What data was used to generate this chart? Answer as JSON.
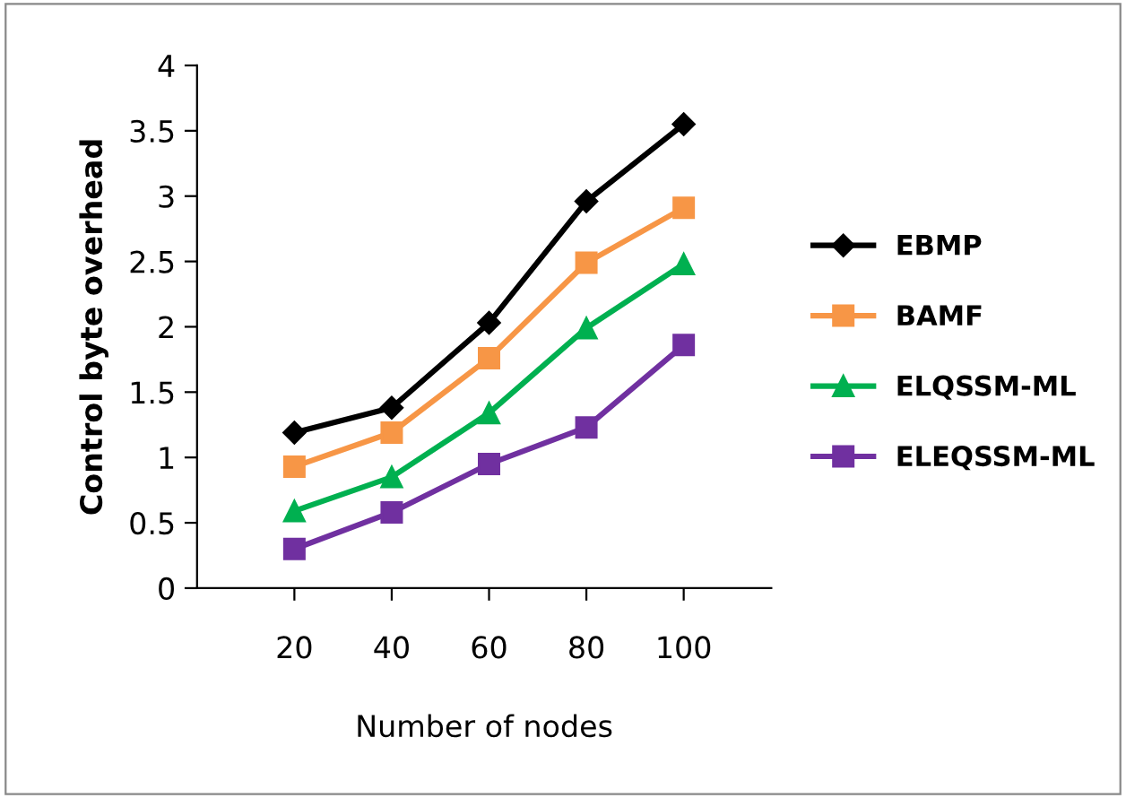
{
  "chart_data": {
    "type": "line",
    "xlabel": "Number of nodes",
    "ylabel": "Control byte overhead",
    "categories": [
      "20",
      "40",
      "60",
      "80",
      "100"
    ],
    "series": [
      {
        "name": "EBMP",
        "color": "#000000",
        "marker": "diamond",
        "values": [
          1.19,
          1.38,
          2.03,
          2.96,
          3.55
        ]
      },
      {
        "name": "BAMF",
        "color": "#f79646",
        "marker": "square",
        "values": [
          0.93,
          1.19,
          1.76,
          2.49,
          2.91
        ]
      },
      {
        "name": "ELQSSM-ML",
        "color": "#00b050",
        "marker": "triangle",
        "values": [
          0.59,
          0.85,
          1.34,
          1.99,
          2.48
        ]
      },
      {
        "name": "ELEQSSM-ML",
        "color": "#7030a0",
        "marker": "square",
        "values": [
          0.3,
          0.58,
          0.95,
          1.23,
          1.86
        ]
      }
    ],
    "ylim": [
      0,
      4
    ],
    "yticks": [
      0,
      0.5,
      1,
      1.5,
      2,
      2.5,
      3,
      3.5,
      4
    ],
    "grid": false,
    "legend": "right",
    "line_style": "solid"
  }
}
